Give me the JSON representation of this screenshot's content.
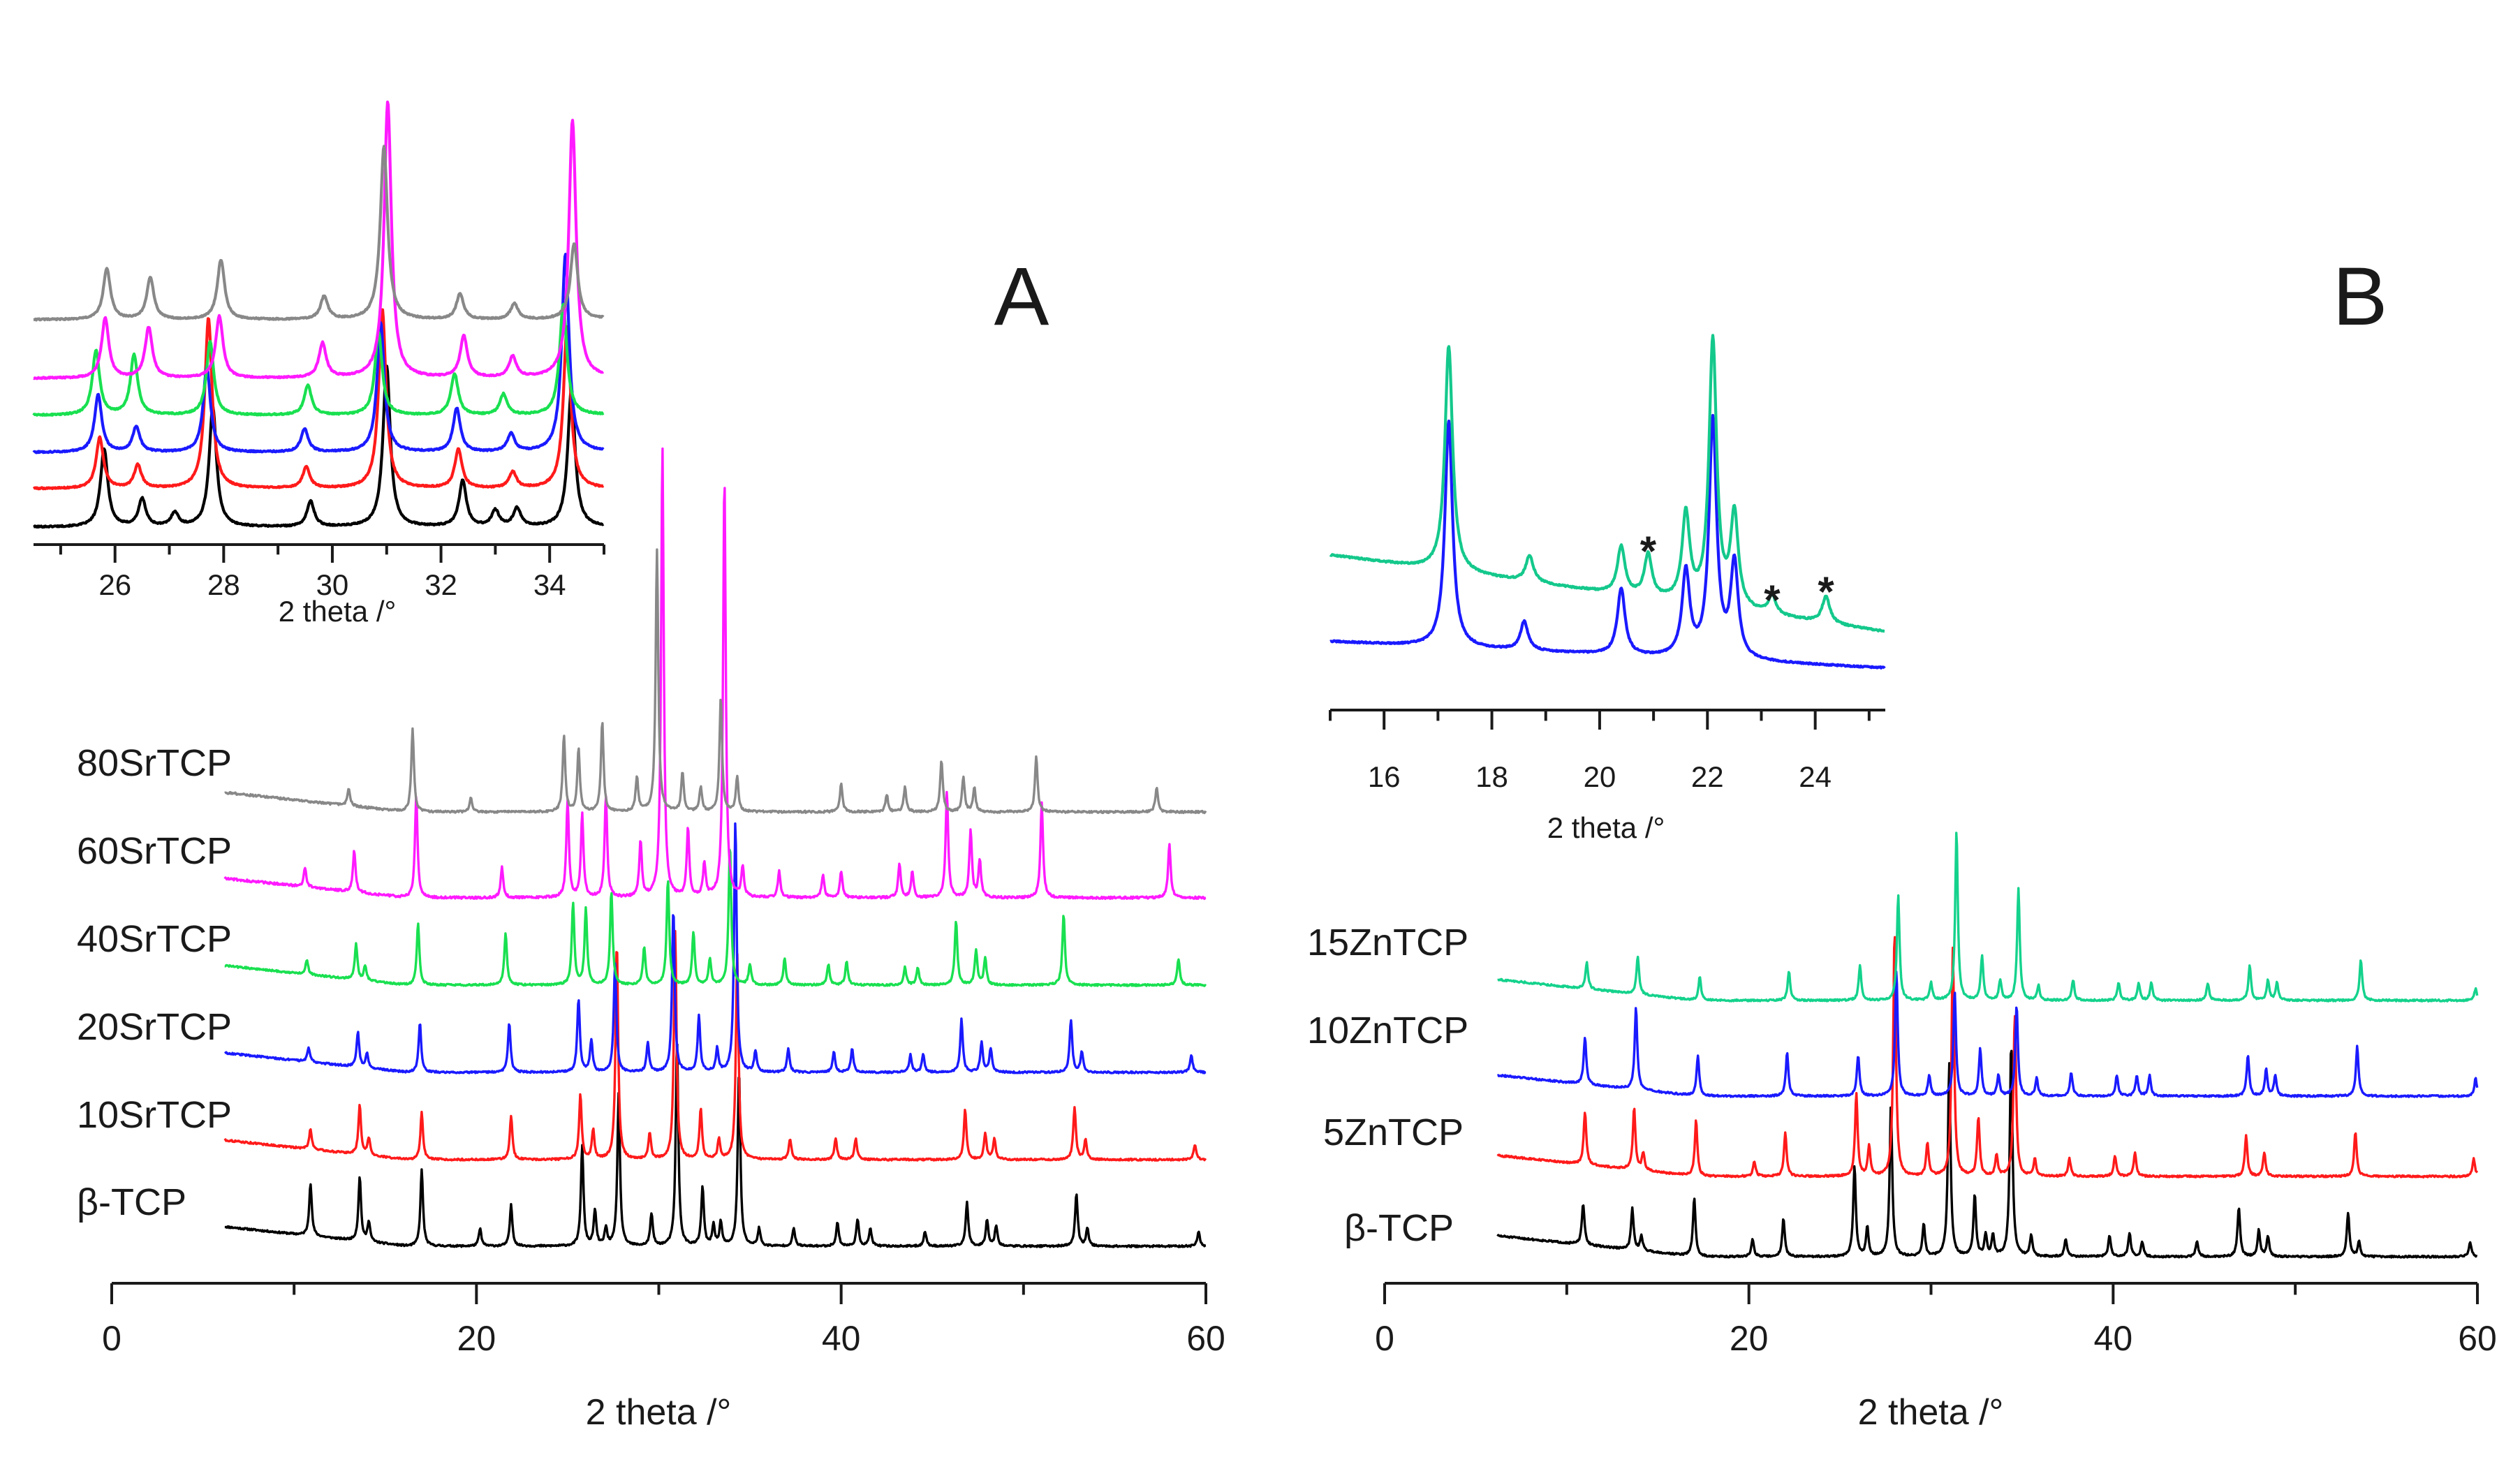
{
  "chart_data": [
    {
      "type": "line",
      "panel": "A",
      "panel_label": "A",
      "title": "",
      "xlabel": "2 theta /°",
      "ylabel": "",
      "xlim": [
        0,
        60
      ],
      "x_ticks": [
        0,
        20,
        40,
        60
      ],
      "y_axis_visible": false,
      "series": [
        {
          "name": "β-TCP",
          "color": "#000000",
          "peaks": [
            [
              10.9,
              0.18
            ],
            [
              13.6,
              0.22
            ],
            [
              14.1,
              0.07
            ],
            [
              17.0,
              0.26
            ],
            [
              20.2,
              0.06
            ],
            [
              21.9,
              0.14
            ],
            [
              25.8,
              0.34
            ],
            [
              26.5,
              0.12
            ],
            [
              27.1,
              0.06
            ],
            [
              27.8,
              0.52
            ],
            [
              29.6,
              0.11
            ],
            [
              31.0,
              0.7
            ],
            [
              32.4,
              0.2
            ],
            [
              33.0,
              0.07
            ],
            [
              33.4,
              0.08
            ],
            [
              34.4,
              0.6
            ],
            [
              35.5,
              0.06
            ],
            [
              37.4,
              0.06
            ],
            [
              39.8,
              0.08
            ],
            [
              40.9,
              0.09
            ],
            [
              41.6,
              0.06
            ],
            [
              44.6,
              0.05
            ],
            [
              46.9,
              0.15
            ],
            [
              48.0,
              0.09
            ],
            [
              48.5,
              0.07
            ],
            [
              52.9,
              0.18
            ],
            [
              53.5,
              0.06
            ],
            [
              59.6,
              0.05
            ]
          ]
        },
        {
          "name": "10SrTCP",
          "color": "#ff1a1a",
          "peaks": [
            [
              10.9,
              0.07
            ],
            [
              13.6,
              0.17
            ],
            [
              14.1,
              0.06
            ],
            [
              17.0,
              0.16
            ],
            [
              21.9,
              0.15
            ],
            [
              25.7,
              0.22
            ],
            [
              26.4,
              0.1
            ],
            [
              27.7,
              0.74
            ],
            [
              29.5,
              0.09
            ],
            [
              30.9,
              0.78
            ],
            [
              32.3,
              0.17
            ],
            [
              33.3,
              0.07
            ],
            [
              34.3,
              0.7
            ],
            [
              37.2,
              0.07
            ],
            [
              39.7,
              0.07
            ],
            [
              40.8,
              0.07
            ],
            [
              46.8,
              0.17
            ],
            [
              47.9,
              0.09
            ],
            [
              48.4,
              0.07
            ],
            [
              52.8,
              0.18
            ],
            [
              53.4,
              0.07
            ],
            [
              59.4,
              0.05
            ]
          ]
        },
        {
          "name": "20SrTCP",
          "color": "#1a1aff",
          "peaks": [
            [
              10.8,
              0.05
            ],
            [
              13.5,
              0.12
            ],
            [
              14.0,
              0.05
            ],
            [
              16.9,
              0.17
            ],
            [
              21.8,
              0.17
            ],
            [
              25.6,
              0.25
            ],
            [
              26.3,
              0.11
            ],
            [
              27.6,
              0.37
            ],
            [
              29.4,
              0.1
            ],
            [
              30.8,
              0.56
            ],
            [
              32.2,
              0.19
            ],
            [
              33.2,
              0.08
            ],
            [
              34.2,
              0.86
            ],
            [
              35.3,
              0.07
            ],
            [
              37.1,
              0.08
            ],
            [
              39.6,
              0.07
            ],
            [
              40.6,
              0.08
            ],
            [
              43.8,
              0.06
            ],
            [
              44.5,
              0.06
            ],
            [
              46.6,
              0.18
            ],
            [
              47.7,
              0.1
            ],
            [
              48.2,
              0.08
            ],
            [
              52.6,
              0.18
            ],
            [
              53.2,
              0.07
            ],
            [
              59.2,
              0.06
            ]
          ]
        },
        {
          "name": "40SrTCP",
          "color": "#19e050",
          "peaks": [
            [
              10.7,
              0.05
            ],
            [
              13.4,
              0.12
            ],
            [
              13.9,
              0.05
            ],
            [
              16.8,
              0.21
            ],
            [
              21.6,
              0.18
            ],
            [
              25.3,
              0.28
            ],
            [
              26.0,
              0.26
            ],
            [
              27.4,
              0.32
            ],
            [
              29.2,
              0.13
            ],
            [
              30.5,
              0.36
            ],
            [
              31.9,
              0.18
            ],
            [
              32.8,
              0.09
            ],
            [
              33.9,
              0.48
            ],
            [
              35.0,
              0.07
            ],
            [
              36.9,
              0.09
            ],
            [
              39.3,
              0.07
            ],
            [
              40.3,
              0.08
            ],
            [
              43.5,
              0.06
            ],
            [
              44.2,
              0.06
            ],
            [
              46.3,
              0.22
            ],
            [
              47.4,
              0.12
            ],
            [
              47.9,
              0.09
            ],
            [
              52.2,
              0.24
            ],
            [
              58.5,
              0.09
            ]
          ]
        },
        {
          "name": "60SrTCP",
          "color": "#ff1aff",
          "peaks": [
            [
              10.6,
              0.05
            ],
            [
              13.3,
              0.11
            ],
            [
              16.7,
              0.27
            ],
            [
              21.4,
              0.08
            ],
            [
              25.0,
              0.26
            ],
            [
              25.8,
              0.22
            ],
            [
              27.1,
              0.27
            ],
            [
              29.0,
              0.15
            ],
            [
              30.2,
              1.2
            ],
            [
              31.6,
              0.18
            ],
            [
              32.5,
              0.09
            ],
            [
              33.6,
              1.12
            ],
            [
              34.6,
              0.08
            ],
            [
              36.6,
              0.07
            ],
            [
              39.0,
              0.06
            ],
            [
              40.0,
              0.07
            ],
            [
              43.2,
              0.09
            ],
            [
              43.9,
              0.07
            ],
            [
              45.8,
              0.28
            ],
            [
              47.1,
              0.18
            ],
            [
              47.6,
              0.1
            ],
            [
              51.0,
              0.25
            ],
            [
              58.0,
              0.14
            ]
          ]
        },
        {
          "name": "80SrTCP",
          "color": "#888888",
          "peaks": [
            [
              13.0,
              0.05
            ],
            [
              16.5,
              0.24
            ],
            [
              19.7,
              0.04
            ],
            [
              24.8,
              0.22
            ],
            [
              25.6,
              0.18
            ],
            [
              26.9,
              0.26
            ],
            [
              28.8,
              0.1
            ],
            [
              29.9,
              0.75
            ],
            [
              31.3,
              0.11
            ],
            [
              32.3,
              0.07
            ],
            [
              33.4,
              0.33
            ],
            [
              34.3,
              0.1
            ],
            [
              40.0,
              0.08
            ],
            [
              42.5,
              0.05
            ],
            [
              43.5,
              0.07
            ],
            [
              45.5,
              0.15
            ],
            [
              46.7,
              0.1
            ],
            [
              47.3,
              0.07
            ],
            [
              50.7,
              0.16
            ],
            [
              57.3,
              0.07
            ]
          ]
        }
      ],
      "inset": {
        "xlabel": "2 theta /°",
        "xlim": [
          24.5,
          35
        ],
        "x_ticks": [
          26,
          28,
          30,
          32,
          34
        ]
      }
    },
    {
      "type": "line",
      "panel": "B",
      "panel_label": "B",
      "title": "",
      "xlabel": "2 theta /°",
      "ylabel": "",
      "xlim": [
        0,
        60
      ],
      "x_ticks": [
        0,
        20,
        40,
        60
      ],
      "y_axis_visible": false,
      "series": [
        {
          "name": "β-TCP",
          "color": "#000000",
          "peaks": [
            [
              10.9,
              0.14
            ],
            [
              13.6,
              0.14
            ],
            [
              14.1,
              0.05
            ],
            [
              17.0,
              0.2
            ],
            [
              20.2,
              0.06
            ],
            [
              21.9,
              0.13
            ],
            [
              25.8,
              0.31
            ],
            [
              26.5,
              0.1
            ],
            [
              27.8,
              0.52
            ],
            [
              29.6,
              0.11
            ],
            [
              31.0,
              0.66
            ],
            [
              32.4,
              0.21
            ],
            [
              33.0,
              0.07
            ],
            [
              33.4,
              0.07
            ],
            [
              34.4,
              0.73
            ],
            [
              35.5,
              0.07
            ],
            [
              37.4,
              0.06
            ],
            [
              39.8,
              0.07
            ],
            [
              40.9,
              0.08
            ],
            [
              41.6,
              0.05
            ],
            [
              44.6,
              0.05
            ],
            [
              46.9,
              0.17
            ],
            [
              48.0,
              0.09
            ],
            [
              48.5,
              0.07
            ],
            [
              52.9,
              0.15
            ],
            [
              53.5,
              0.05
            ],
            [
              59.6,
              0.05
            ]
          ]
        },
        {
          "name": "5ZnTCP",
          "color": "#ff1a1a",
          "peaks": [
            [
              11.0,
              0.18
            ],
            [
              13.7,
              0.21
            ],
            [
              14.2,
              0.06
            ],
            [
              17.1,
              0.19
            ],
            [
              20.3,
              0.05
            ],
            [
              22.0,
              0.15
            ],
            [
              25.9,
              0.28
            ],
            [
              26.6,
              0.1
            ],
            [
              28.0,
              0.84
            ],
            [
              29.8,
              0.11
            ],
            [
              31.2,
              0.78
            ],
            [
              32.6,
              0.2
            ],
            [
              33.6,
              0.07
            ],
            [
              34.6,
              0.55
            ],
            [
              35.7,
              0.06
            ],
            [
              37.6,
              0.06
            ],
            [
              40.1,
              0.07
            ],
            [
              41.2,
              0.08
            ],
            [
              47.3,
              0.14
            ],
            [
              48.3,
              0.08
            ],
            [
              53.3,
              0.15
            ],
            [
              59.8,
              0.06
            ]
          ]
        },
        {
          "name": "10ZnTCP",
          "color": "#1a1aff",
          "peaks": [
            [
              11.0,
              0.16
            ],
            [
              13.8,
              0.28
            ],
            [
              17.2,
              0.14
            ],
            [
              22.1,
              0.15
            ],
            [
              26.0,
              0.14
            ],
            [
              28.1,
              0.43
            ],
            [
              29.9,
              0.07
            ],
            [
              31.3,
              0.36
            ],
            [
              32.7,
              0.16
            ],
            [
              33.7,
              0.07
            ],
            [
              34.7,
              0.31
            ],
            [
              35.8,
              0.06
            ],
            [
              37.7,
              0.08
            ],
            [
              40.2,
              0.07
            ],
            [
              41.3,
              0.07
            ],
            [
              42.0,
              0.07
            ],
            [
              47.4,
              0.14
            ],
            [
              48.4,
              0.09
            ],
            [
              48.9,
              0.07
            ],
            [
              53.4,
              0.17
            ],
            [
              59.9,
              0.06
            ]
          ]
        },
        {
          "name": "15ZnTCP",
          "color": "#14d28c",
          "peaks": [
            [
              11.1,
              0.09
            ],
            [
              13.9,
              0.13
            ],
            [
              17.3,
              0.08
            ],
            [
              22.2,
              0.1
            ],
            [
              26.1,
              0.12
            ],
            [
              28.2,
              0.36
            ],
            [
              30.0,
              0.06
            ],
            [
              31.4,
              0.58
            ],
            [
              32.8,
              0.15
            ],
            [
              33.8,
              0.07
            ],
            [
              34.8,
              0.38
            ],
            [
              35.9,
              0.05
            ],
            [
              37.8,
              0.07
            ],
            [
              40.3,
              0.06
            ],
            [
              41.4,
              0.06
            ],
            [
              42.1,
              0.06
            ],
            [
              45.2,
              0.06
            ],
            [
              47.5,
              0.12
            ],
            [
              48.5,
              0.07
            ],
            [
              49.0,
              0.06
            ],
            [
              53.6,
              0.14
            ],
            [
              59.9,
              0.04
            ]
          ]
        }
      ],
      "inset": {
        "xlabel": "2 theta /°",
        "xlim": [
          15,
          25.3
        ],
        "x_ticks": [
          16,
          18,
          20,
          22,
          24
        ],
        "series": [
          {
            "name": "10ZnTCP",
            "color": "#1a1aff",
            "peaks": [
              [
                17.2,
                0.95
              ],
              [
                18.6,
                0.12
              ],
              [
                20.4,
                0.28
              ],
              [
                21.6,
                0.36
              ],
              [
                22.1,
                1.0
              ],
              [
                22.5,
                0.4
              ]
            ]
          },
          {
            "name": "15ZnTCP",
            "color": "#14c88c",
            "peaks": [
              [
                17.2,
                0.85
              ],
              [
                18.7,
                0.1
              ],
              [
                20.4,
                0.18
              ],
              [
                20.9,
                0.16
              ],
              [
                21.6,
                0.33
              ],
              [
                22.1,
                1.0
              ],
              [
                22.5,
                0.35
              ],
              [
                23.2,
                0.07
              ],
              [
                24.2,
                0.1
              ]
            ]
          }
        ],
        "impurity_markers": [
          {
            "x": 20.9,
            "label": "*"
          },
          {
            "x": 23.2,
            "label": "*"
          },
          {
            "x": 24.2,
            "label": "*"
          }
        ]
      }
    }
  ]
}
